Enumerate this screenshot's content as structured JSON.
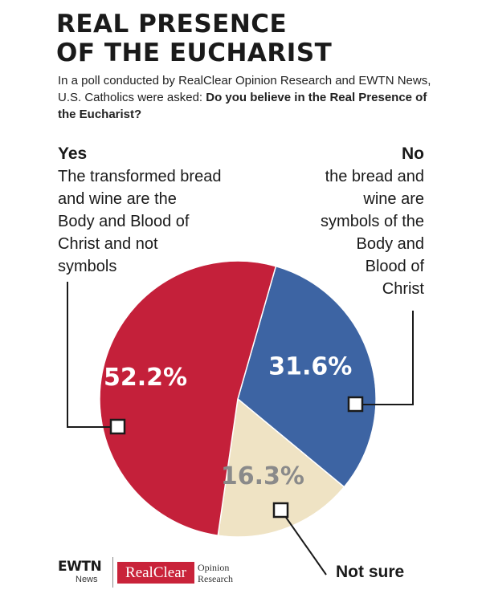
{
  "title": {
    "line1": "REAL PRESENCE",
    "line2": "OF THE EUCHARIST"
  },
  "intro": {
    "text": "In a poll conducted by RealClear Opinion Research and EWTN News, U.S. Catholics were asked: ",
    "question": "Do you believe in the Real Presence of the Eucharist?"
  },
  "yes": {
    "label": "Yes",
    "desc_lines": [
      "The transformed bread",
      "and wine are the",
      "Body and Blood of",
      "Christ and not",
      "symbols"
    ]
  },
  "no": {
    "label": "No",
    "desc_lines": [
      "the bread and",
      "wine are",
      "symbols of the",
      "Body and",
      "Blood of",
      "Christ"
    ]
  },
  "not_sure_label": "Not sure",
  "colors": {
    "yes": "#c4203a",
    "no": "#3d64a3",
    "not_sure": "#efe3c4",
    "not_sure_text": "#8a8a8a"
  },
  "chart_data": {
    "type": "pie",
    "slices": [
      {
        "label": "Yes",
        "value": 52.2,
        "display": "52.2%",
        "color": "#c4203a"
      },
      {
        "label": "No",
        "value": 31.6,
        "display": "31.6%",
        "color": "#3d64a3"
      },
      {
        "label": "Not sure",
        "value": 16.3,
        "display": "16.3%",
        "color": "#efe3c4"
      }
    ]
  },
  "logos": {
    "ewtn": "EWTN",
    "ewtn_sub": "News",
    "realclear": "RealClear",
    "realclear_sub": [
      "Opinion",
      "Research"
    ]
  }
}
